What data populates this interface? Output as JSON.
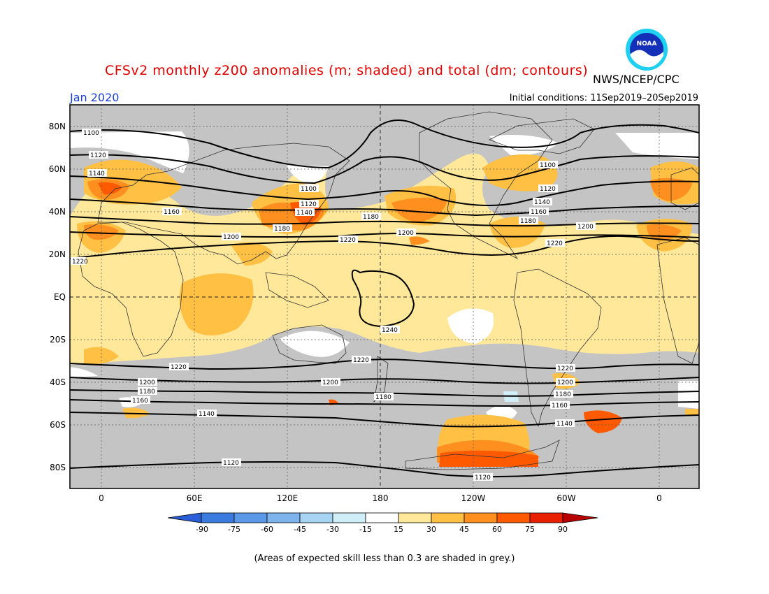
{
  "title": "CFSv2 monthly z200 anomalies (m; shaded) and total (dm; contours)",
  "agency": "NWS/NCEP/CPC",
  "month": "Jan 2020",
  "initial_conditions": "Initial conditions: 11Sep2019–20Sep2019",
  "footnote": "(Areas of expected skill less than 0.3 are shaded in grey.)",
  "logo_text": "NOAA",
  "map": {
    "lat_labels": [
      "80N",
      "60N",
      "40N",
      "20N",
      "EQ",
      "20S",
      "40S",
      "60S",
      "80S"
    ],
    "lon_labels": [
      "0",
      "60E",
      "120E",
      "180",
      "120W",
      "60W",
      "0"
    ]
  },
  "contour_labels": [
    "1100",
    "1120",
    "1140",
    "1160",
    "1180",
    "1200",
    "1220",
    "1240"
  ],
  "colorbar": {
    "ticks": [
      "-90",
      "-75",
      "-60",
      "-45",
      "-30",
      "-15",
      "15",
      "30",
      "45",
      "60",
      "75",
      "90"
    ],
    "colors": [
      "#2a5fd8",
      "#3a7be0",
      "#5a98e8",
      "#7eb4ee",
      "#a8d4f4",
      "#cfeef8",
      "#ffffff",
      "#ffe89a",
      "#ffc044",
      "#ff9020",
      "#ff5a00",
      "#e82000",
      "#b80000"
    ]
  },
  "colors": {
    "grey": "#c4c4c4",
    "pale": "#ffe89a",
    "light_orange": "#ffc044",
    "orange": "#ff9020",
    "red_orange": "#ff5a00"
  }
}
